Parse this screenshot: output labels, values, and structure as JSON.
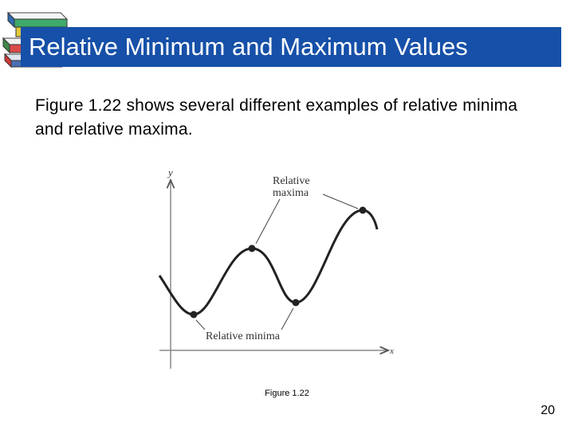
{
  "slide": {
    "title": "Relative Minimum and Maximum Values",
    "body": "Figure 1.22 shows several different examples of relative minima and relative maxima.",
    "figure_caption": "Figure 1.22",
    "page_number": "20",
    "title_bar_color": "#1650a8"
  },
  "figure": {
    "y_axis_label": "y",
    "x_axis_label": "x",
    "maxima_label_line1": "Relative",
    "maxima_label_line2": "maxima",
    "minima_label": "Relative minima"
  },
  "icons": {
    "logo": "book-stack-icon"
  }
}
